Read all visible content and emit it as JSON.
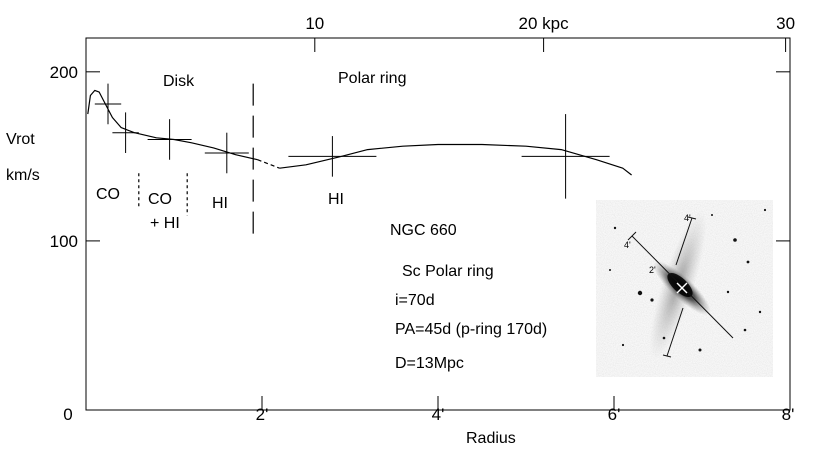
{
  "chart_data": {
    "type": "line",
    "title": "",
    "object_name": "NGC 660",
    "ylabel_line1": "Vrot",
    "ylabel_line2": "km/s",
    "xlabel": "Radius",
    "xlim": [
      0,
      8
    ],
    "ylim": [
      0,
      220
    ],
    "x_unit": "arcmin",
    "bottom_ticks": [
      {
        "value": 0,
        "label": "0"
      },
      {
        "value": 2,
        "label": "2'"
      },
      {
        "value": 4,
        "label": "4'"
      },
      {
        "value": 6,
        "label": "6'"
      },
      {
        "value": 8,
        "label": "8'"
      }
    ],
    "top_ticks": [
      {
        "value": 2.6,
        "label": "10"
      },
      {
        "value": 5.2,
        "label": "20 kpc"
      },
      {
        "value": 7.95,
        "label": "30"
      }
    ],
    "left_ticks": [
      {
        "value": 100,
        "label": "100"
      },
      {
        "value": 200,
        "label": "200"
      }
    ],
    "curve": [
      [
        0.02,
        175
      ],
      [
        0.05,
        186
      ],
      [
        0.1,
        189
      ],
      [
        0.15,
        188
      ],
      [
        0.2,
        183
      ],
      [
        0.3,
        173
      ],
      [
        0.4,
        167
      ],
      [
        0.55,
        164
      ],
      [
        0.8,
        161
      ],
      [
        1.0,
        160
      ],
      [
        1.2,
        158
      ],
      [
        1.45,
        155
      ],
      [
        1.7,
        151
      ],
      [
        1.95,
        148
      ]
    ],
    "curve_gap": [
      [
        1.95,
        148
      ],
      [
        2.2,
        143
      ]
    ],
    "curve_polar": [
      [
        2.2,
        143
      ],
      [
        2.5,
        145
      ],
      [
        2.9,
        150
      ],
      [
        3.2,
        154
      ],
      [
        3.6,
        156
      ],
      [
        4.0,
        157
      ],
      [
        4.5,
        157
      ],
      [
        5.0,
        156
      ],
      [
        5.4,
        154
      ],
      [
        5.8,
        148
      ],
      [
        6.1,
        143
      ],
      [
        6.2,
        139
      ]
    ],
    "error_crosses": [
      {
        "x": 0.25,
        "y": 181,
        "xerr": 0.15,
        "yerr": 12
      },
      {
        "x": 0.45,
        "y": 164,
        "xerr": 0.15,
        "yerr": 12
      },
      {
        "x": 0.95,
        "y": 160,
        "xerr": 0.25,
        "yerr": 12
      },
      {
        "x": 1.6,
        "y": 152,
        "xerr": 0.25,
        "yerr": 12
      },
      {
        "x": 2.8,
        "y": 150,
        "xerr": 0.5,
        "yerr": 12
      },
      {
        "x": 5.45,
        "y": 150,
        "xerr": 0.5,
        "yerr": 25
      }
    ],
    "separators": [
      {
        "x": 0.6,
        "y1": 140,
        "y2": 120,
        "style": "dash-short"
      },
      {
        "x": 1.15,
        "y1": 140,
        "y2": 115,
        "style": "dash-short"
      },
      {
        "x": 1.9,
        "y1": 193,
        "y2": 100,
        "style": "dash-long"
      }
    ],
    "annotations": {
      "disk": "Disk",
      "polar_ring": "Polar ring",
      "co": "CO",
      "co_hi_1": "CO",
      "co_hi_2": "+ HI",
      "hi_disk": "HI",
      "hi_ring": "HI"
    },
    "info": {
      "name": "NGC 660",
      "type": "Sc  Polar ring",
      "incl": "i=70d",
      "pa": "PA=45d (p-ring 170d)",
      "dist": "D=13Mpc"
    },
    "inset": {
      "labels": [
        "4'",
        "4'",
        "2'"
      ]
    },
    "grid": false,
    "legend": "none"
  }
}
